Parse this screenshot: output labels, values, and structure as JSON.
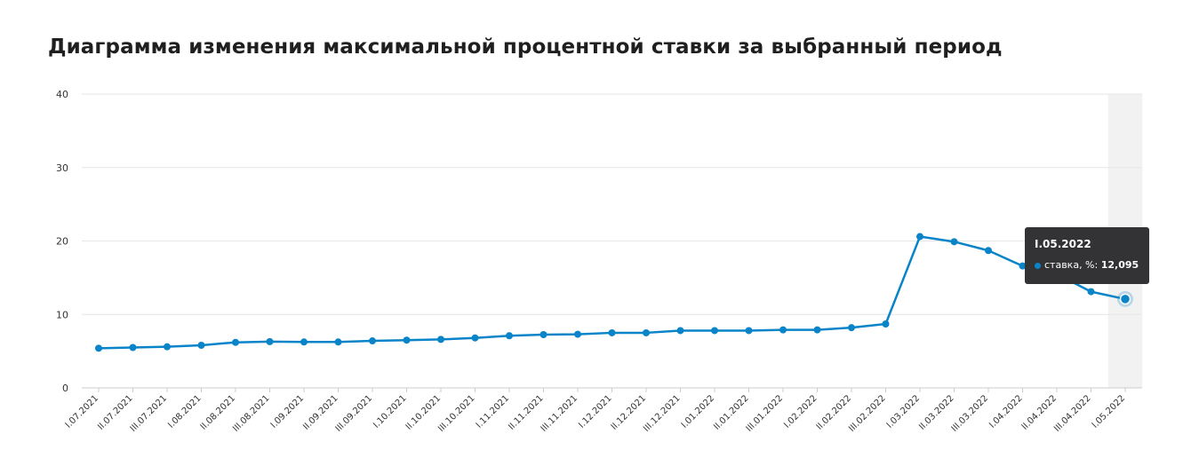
{
  "page": {
    "title": "Диаграмма изменения максимальной процентной ставки за выбранный период"
  },
  "colors": {
    "series": "#0a84c8",
    "grid": "#e6e6e6",
    "highlight_band": "#f2f2f2",
    "tooltip_bg": "#333336"
  },
  "tooltip": {
    "title": "I.05.2022",
    "series_label": "ставка, %:",
    "value": "12,095"
  },
  "chart_data": {
    "type": "line",
    "title": "Диаграмма изменения максимальной процентной ставки за выбранный период",
    "xlabel": "",
    "ylabel": "",
    "ylim": [
      0,
      40
    ],
    "yticks": [
      "0",
      "10",
      "20",
      "30",
      "40"
    ],
    "grid": true,
    "highlighted_category": "I.05.2022",
    "categories": [
      "I.07.2021",
      "II.07.2021",
      "III.07.2021",
      "I.08.2021",
      "II.08.2021",
      "III.08.2021",
      "I.09.2021",
      "II.09.2021",
      "III.09.2021",
      "I.10.2021",
      "II.10.2021",
      "III.10.2021",
      "I.11.2021",
      "II.11.2021",
      "III.11.2021",
      "I.12.2021",
      "II.12.2021",
      "III.12.2021",
      "I.01.2022",
      "II.01.2022",
      "III.01.2022",
      "I.02.2022",
      "II.02.2022",
      "III.02.2022",
      "I.03.2022",
      "II.03.2022",
      "III.03.2022",
      "I.04.2022",
      "II.04.2022",
      "III.04.2022",
      "I.05.2022"
    ],
    "series": [
      {
        "name": "ставка, %",
        "values": [
          5.4,
          5.5,
          5.6,
          5.8,
          6.2,
          6.3,
          6.25,
          6.25,
          6.4,
          6.5,
          6.6,
          6.8,
          7.1,
          7.25,
          7.3,
          7.5,
          7.5,
          7.8,
          7.8,
          7.8,
          7.9,
          7.9,
          8.2,
          8.7,
          20.6,
          19.9,
          18.7,
          16.6,
          15.5,
          13.1,
          12.095
        ]
      }
    ]
  }
}
